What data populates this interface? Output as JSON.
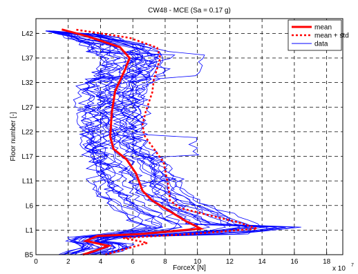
{
  "chart_data": {
    "type": "line",
    "title": "CW48 - MCE (Sa = 0.17 g)",
    "xlabel": "ForceX [N]",
    "ylabel": "Floor number [-]",
    "x_multiplier": "x 10",
    "x_multiplier_exp": "7",
    "xlim": [
      0,
      19
    ],
    "ylim": [
      0,
      48
    ],
    "x_ticks": [
      0,
      2,
      4,
      6,
      8,
      10,
      12,
      14,
      16,
      18
    ],
    "y_ticks": [
      {
        "level": 0,
        "label": "B5"
      },
      {
        "level": 5,
        "label": "L1"
      },
      {
        "level": 10,
        "label": "L6"
      },
      {
        "level": 15,
        "label": "L11"
      },
      {
        "level": 20,
        "label": "L17"
      },
      {
        "level": 25,
        "label": "L22"
      },
      {
        "level": 30,
        "label": "L27"
      },
      {
        "level": 35,
        "label": "L32"
      },
      {
        "level": 40,
        "label": "L37"
      },
      {
        "level": 45,
        "label": "L42"
      }
    ],
    "grid": true,
    "legend_position": "top-right",
    "series": [
      {
        "name": "mean",
        "color": "#ff0000",
        "style": "solid",
        "points": [
          [
            2.9,
            0
          ],
          [
            3.6,
            0.7
          ],
          [
            4.5,
            1.8
          ],
          [
            3.1,
            2.8
          ],
          [
            3.8,
            3.8
          ],
          [
            6.5,
            4.2
          ],
          [
            10.2,
            5.3
          ],
          [
            9.3,
            6.8
          ],
          [
            8.4,
            8.6
          ],
          [
            7.2,
            11
          ],
          [
            6.6,
            13
          ],
          [
            6.2,
            16.5
          ],
          [
            5.6,
            19.4
          ],
          [
            4.8,
            21.5
          ],
          [
            4.6,
            24
          ],
          [
            4.7,
            29
          ],
          [
            4.9,
            33.2
          ],
          [
            5.5,
            37.5
          ],
          [
            5.8,
            40
          ],
          [
            5.2,
            42.2
          ],
          [
            3.2,
            44.4
          ],
          [
            1.6,
            45.8
          ]
        ]
      },
      {
        "name": "mean + std",
        "color": "#ff0000",
        "style": "dotted",
        "points": [
          [
            4.3,
            0
          ],
          [
            5.6,
            1.2
          ],
          [
            6.9,
            2.4
          ],
          [
            5.4,
            3.4
          ],
          [
            9.6,
            4.2
          ],
          [
            13.7,
            5.3
          ],
          [
            12.5,
            6.6
          ],
          [
            10.5,
            8.2
          ],
          [
            8.9,
            9.5
          ],
          [
            8.3,
            11
          ],
          [
            8.2,
            14
          ],
          [
            7.9,
            18.8
          ],
          [
            6.7,
            24.3
          ],
          [
            6.6,
            26.5
          ],
          [
            6.8,
            29.1
          ],
          [
            7.2,
            33
          ],
          [
            7.3,
            35.6
          ],
          [
            7.7,
            40
          ],
          [
            7.5,
            42.1
          ],
          [
            5.8,
            44.1
          ],
          [
            2.4,
            45.8
          ]
        ]
      }
    ],
    "data_series_label": "data",
    "data_color": "#0000ff"
  }
}
